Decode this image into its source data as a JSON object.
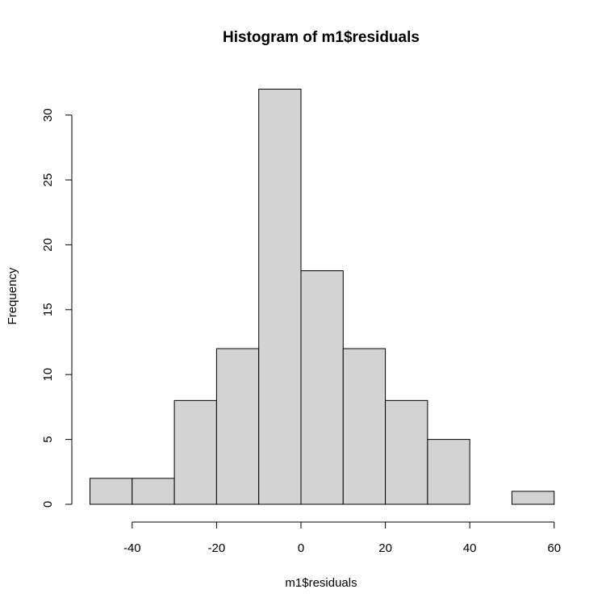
{
  "chart_data": {
    "type": "bar",
    "title": "Histogram of m1$residuals",
    "xlabel": "m1$residuals",
    "ylabel": "Frequency",
    "bins": [
      {
        "x0": -50,
        "x1": -40,
        "count": 2
      },
      {
        "x0": -40,
        "x1": -30,
        "count": 2
      },
      {
        "x0": -30,
        "x1": -20,
        "count": 8
      },
      {
        "x0": -20,
        "x1": -10,
        "count": 12
      },
      {
        "x0": -10,
        "x1": 0,
        "count": 32
      },
      {
        "x0": 0,
        "x1": 10,
        "count": 18
      },
      {
        "x0": 10,
        "x1": 20,
        "count": 12
      },
      {
        "x0": 20,
        "x1": 30,
        "count": 8
      },
      {
        "x0": 30,
        "x1": 40,
        "count": 5
      },
      {
        "x0": 40,
        "x1": 50,
        "count": 0
      },
      {
        "x0": 50,
        "x1": 60,
        "count": 1
      }
    ],
    "x_ticks": [
      "-40",
      "-20",
      "0",
      "20",
      "40",
      "60"
    ],
    "y_ticks": [
      "0",
      "5",
      "10",
      "15",
      "20",
      "25",
      "30"
    ],
    "xlim": [
      -50,
      60
    ],
    "ylim": [
      0,
      32
    ],
    "bar_fill": "#d3d3d3",
    "bar_stroke": "#000000",
    "grid": false
  }
}
